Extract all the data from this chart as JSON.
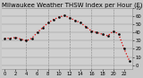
{
  "title": "Milwaukee Weather THSW Index per Hour (F) (Last 24 Hours)",
  "bg_color": "#c8c8c8",
  "plot_bg_color": "#d0d0d0",
  "line_color": "#dd0000",
  "marker_color": "#000000",
  "y_values": [
    33,
    33,
    34,
    32,
    30,
    33,
    40,
    46,
    52,
    56,
    59,
    61,
    58,
    55,
    52,
    47,
    42,
    40,
    38,
    36,
    42,
    38,
    20,
    5
  ],
  "x_values": [
    0,
    1,
    2,
    3,
    4,
    5,
    6,
    7,
    8,
    9,
    10,
    11,
    12,
    13,
    14,
    15,
    16,
    17,
    18,
    19,
    20,
    21,
    22,
    23
  ],
  "ylim": [
    -5,
    70
  ],
  "yticks": [
    0,
    10,
    20,
    30,
    40,
    50,
    60,
    70
  ],
  "ytick_labels": [
    "0",
    "10",
    "20",
    "30",
    "40",
    "50",
    "60",
    "70"
  ],
  "vgrid_positions": [
    4,
    8,
    12,
    16,
    20
  ],
  "title_fontsize": 5.0,
  "tick_fontsize": 3.8,
  "line_width": 0.9,
  "marker_size": 1.5
}
